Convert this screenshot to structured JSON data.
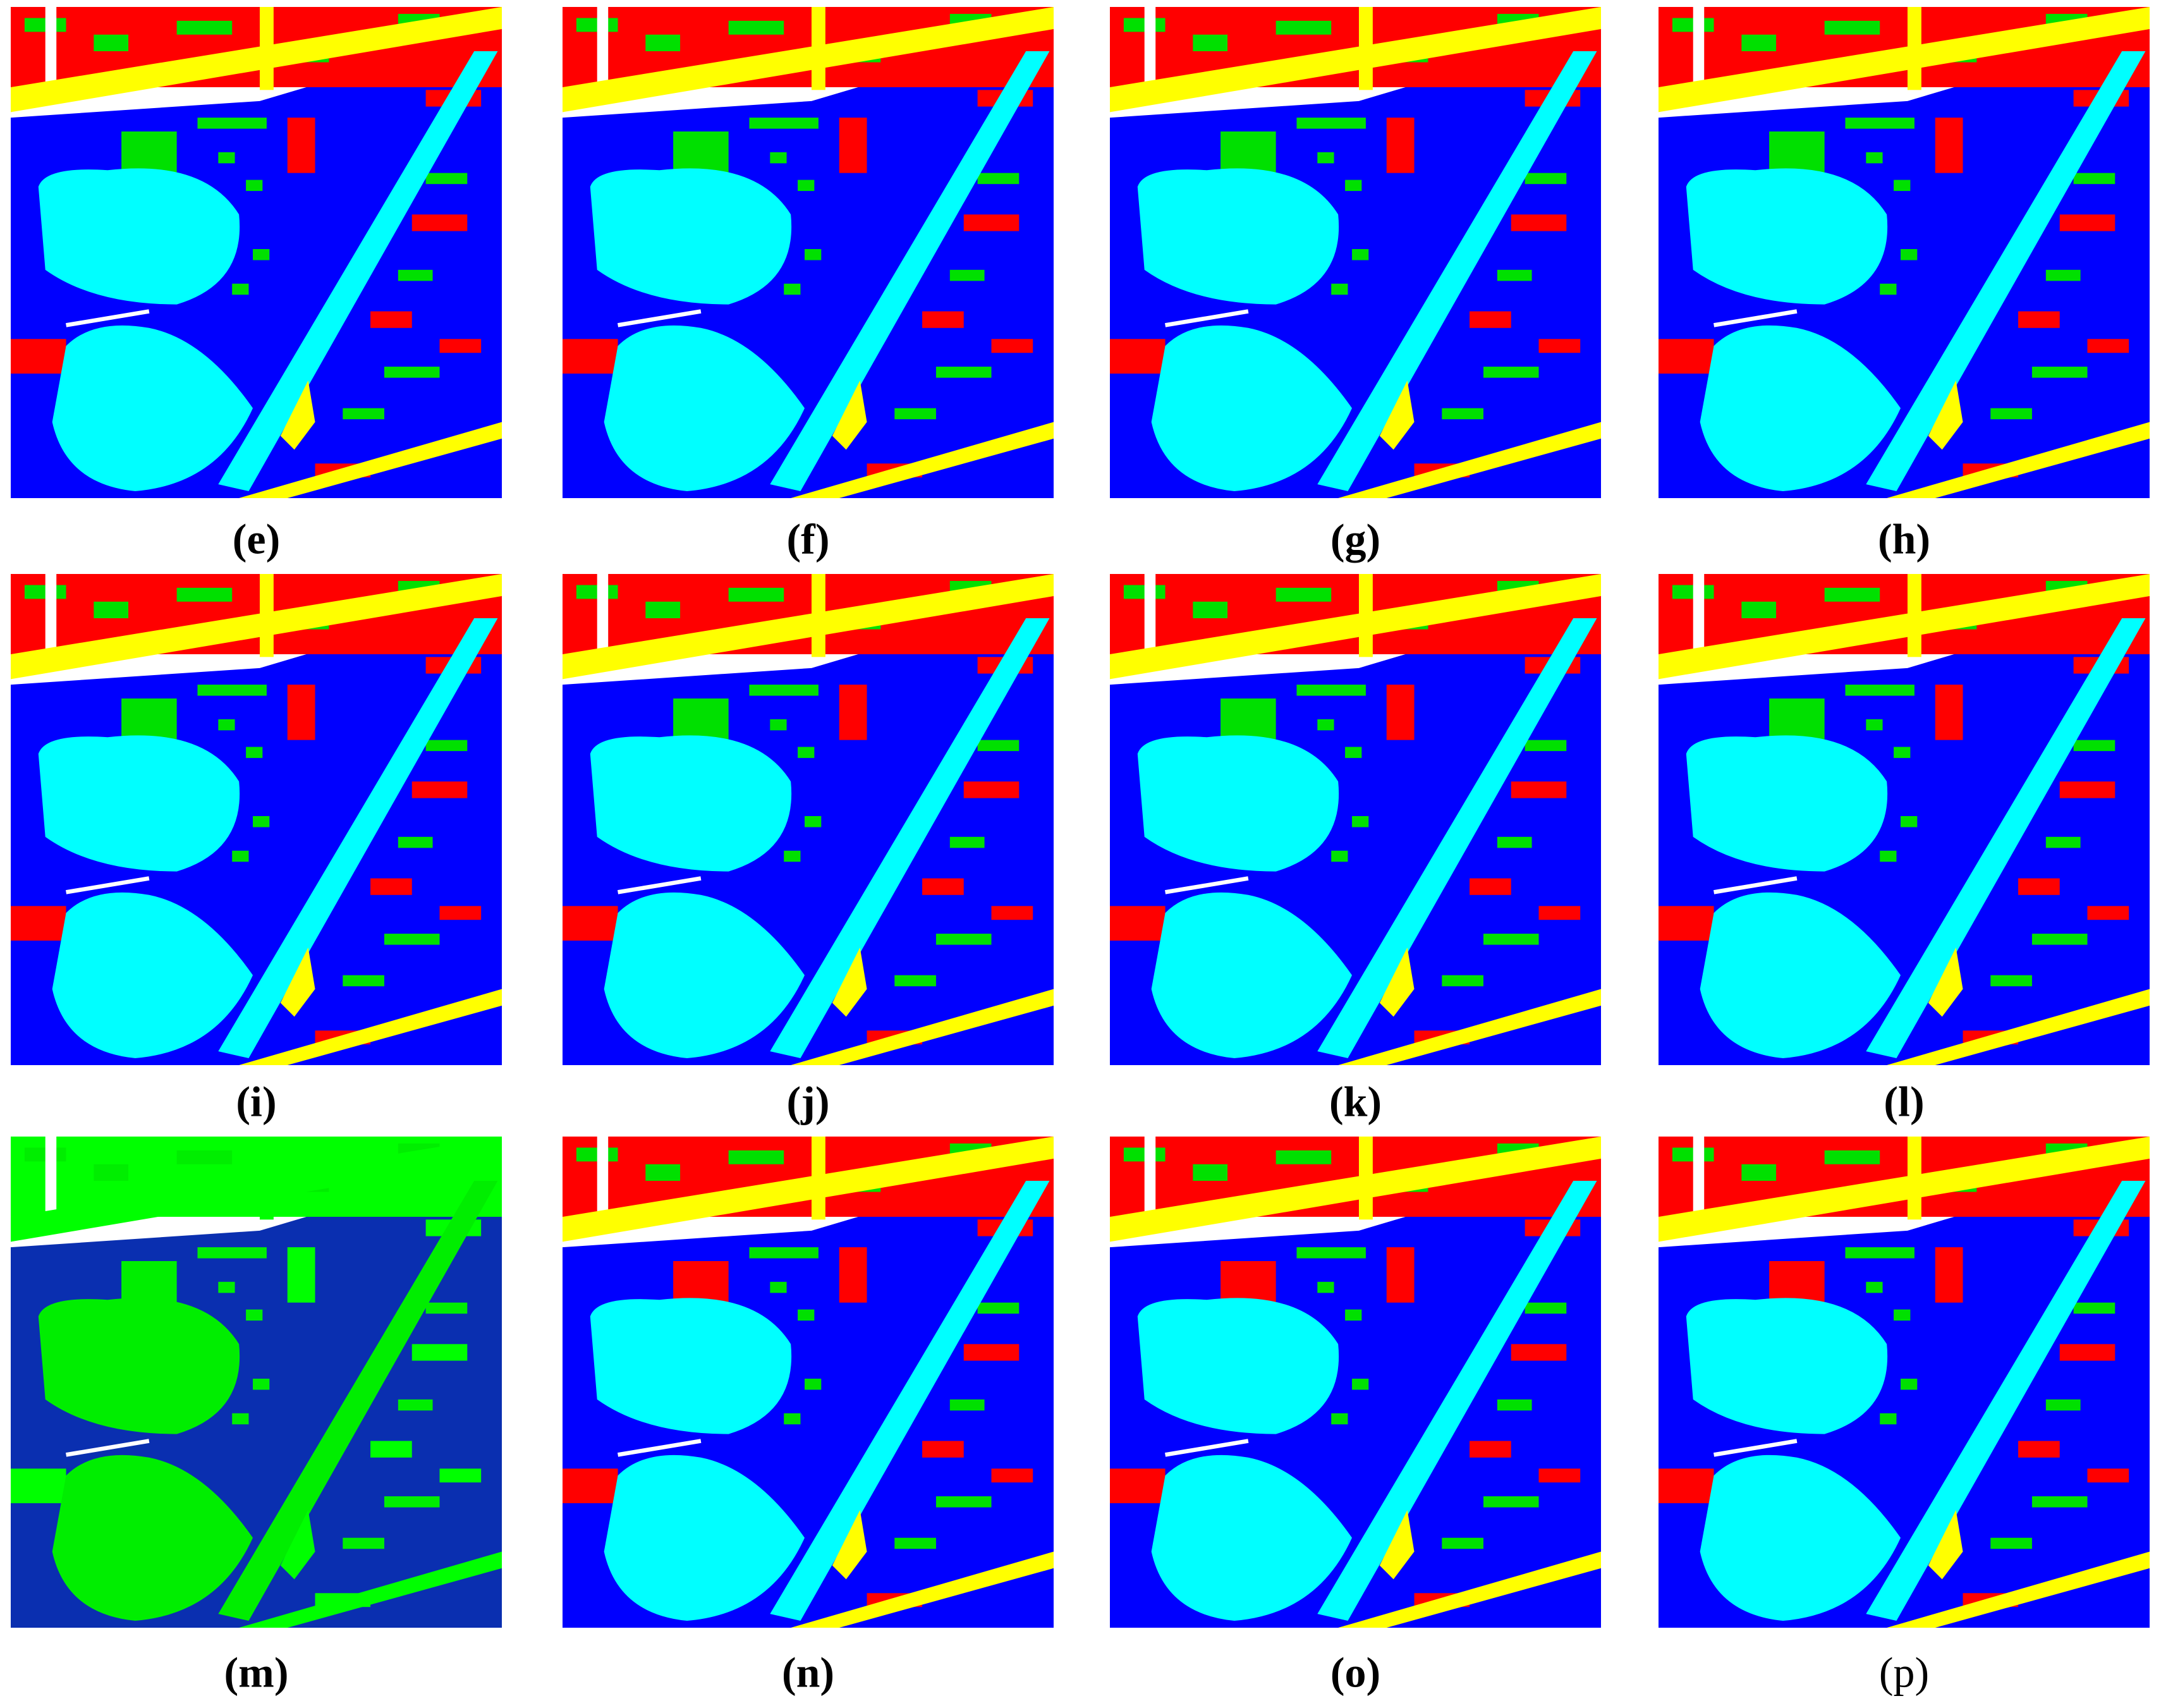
{
  "panels": [
    {
      "label": "(e)"
    },
    {
      "label": "(f)"
    },
    {
      "label": "(g)"
    },
    {
      "label": "(h)"
    },
    {
      "label": "(i)"
    },
    {
      "label": "(j)"
    },
    {
      "label": "(k)"
    },
    {
      "label": "(l)"
    },
    {
      "label": "(m)"
    },
    {
      "label": "(n)"
    },
    {
      "label": "(o)"
    },
    {
      "label": "(p)"
    }
  ]
}
